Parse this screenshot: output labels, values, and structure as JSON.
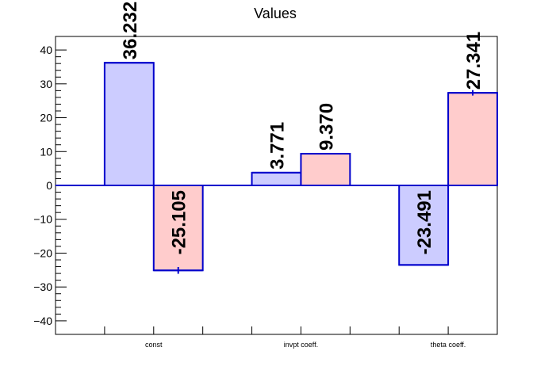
{
  "chart_data": {
    "type": "bar",
    "title": "Values",
    "xlabel": "",
    "ylabel": "",
    "categories": [
      "const",
      "invpt coeff.",
      "theta coeff."
    ],
    "series": [
      {
        "values": [
          36.232,
          3.771,
          -23.491
        ],
        "color": "#ccccff"
      },
      {
        "values": [
          -25.105,
          9.37,
          27.341
        ],
        "color": "#ffcccc"
      }
    ],
    "data_labels": [
      [
        "36.232",
        "3.771",
        "-23.491"
      ],
      [
        "-25.105",
        "9.370",
        "27.341"
      ]
    ],
    "error_bars": [
      [
        0,
        0,
        0
      ],
      [
        1.0,
        0,
        0.8
      ]
    ],
    "ylim": [
      -44,
      44
    ],
    "yticks": [
      -40,
      -30,
      -20,
      -10,
      0,
      10,
      20,
      30,
      40
    ],
    "ytick_labels": [
      "−40",
      "−30",
      "−20",
      "−10",
      "0",
      "10",
      "20",
      "30",
      "40"
    ],
    "grid": false,
    "legend": "none",
    "bar_edge_color": "#0000cc",
    "axis_color": "#000000"
  }
}
